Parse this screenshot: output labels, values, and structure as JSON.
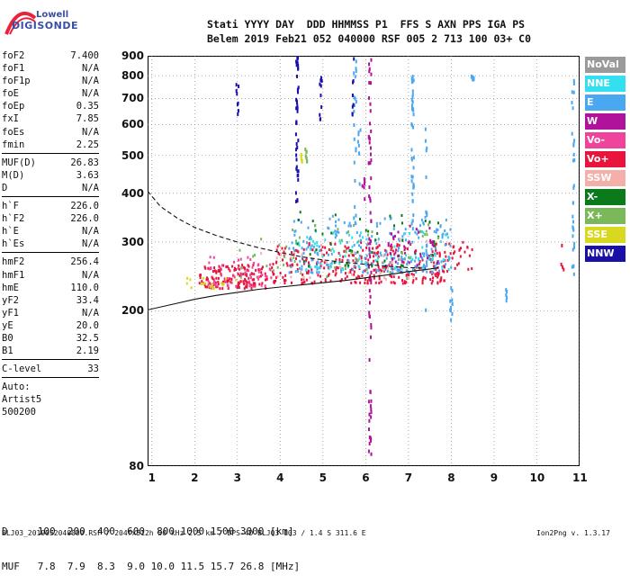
{
  "logo": {
    "brand": "Lowell",
    "product": "DIGISONDE"
  },
  "header": {
    "row1": "Stati YYYY DAY  DDD HHMMSS P1  FFS S AXN PPS IGA PS",
    "row2": "Belem 2019 Feb21 052 040000 RSF 005 2 713 100 03+ C0"
  },
  "params": [
    {
      "group": [
        {
          "k": "foF2",
          "v": "7.400"
        },
        {
          "k": "foF1",
          "v": "N/A"
        },
        {
          "k": "foF1p",
          "v": "N/A"
        },
        {
          "k": "foE",
          "v": "N/A"
        },
        {
          "k": "foEp",
          "v": "0.35"
        },
        {
          "k": "fxI",
          "v": "7.85"
        },
        {
          "k": "foEs",
          "v": "N/A"
        },
        {
          "k": "fmin",
          "v": "2.25"
        }
      ]
    },
    {
      "group": [
        {
          "k": "MUF(D)",
          "v": "26.83"
        },
        {
          "k": "M(D)",
          "v": "3.63"
        },
        {
          "k": "D",
          "v": "N/A"
        }
      ]
    },
    {
      "group": [
        {
          "k": "h`F",
          "v": "226.0"
        },
        {
          "k": "h`F2",
          "v": "226.0"
        },
        {
          "k": "h`E",
          "v": "N/A"
        },
        {
          "k": "h`Es",
          "v": "N/A"
        }
      ]
    },
    {
      "group": [
        {
          "k": "hmF2",
          "v": "256.4"
        },
        {
          "k": "hmF1",
          "v": "N/A"
        },
        {
          "k": "hmE",
          "v": "110.0"
        },
        {
          "k": "yF2",
          "v": "33.4"
        },
        {
          "k": "yF1",
          "v": "N/A"
        },
        {
          "k": "yE",
          "v": "20.0"
        },
        {
          "k": "B0",
          "v": "32.5"
        },
        {
          "k": "B1",
          "v": "2.19"
        }
      ]
    },
    {
      "group": [
        {
          "k": "C-level",
          "v": "33"
        }
      ]
    },
    {
      "group": [
        {
          "k": "Auto:",
          "v": ""
        },
        {
          "k": "Artist5",
          "v": ""
        },
        {
          "k": "500200",
          "v": ""
        }
      ]
    }
  ],
  "legend": [
    {
      "label": "NoVal",
      "color": "#9a9a9a"
    },
    {
      "label": "NNE",
      "color": "#33e0f0"
    },
    {
      "label": "E",
      "color": "#4aa8f0"
    },
    {
      "label": "W",
      "color": "#b0129c"
    },
    {
      "label": "Vo-",
      "color": "#f0449c"
    },
    {
      "label": "Vo+",
      "color": "#e8143c"
    },
    {
      "label": "SSW",
      "color": "#f4b0a8"
    },
    {
      "label": "X-",
      "color": "#0a7a1a"
    },
    {
      "label": "X+",
      "color": "#7ab85a"
    },
    {
      "label": "SSE",
      "color": "#d8d820"
    },
    {
      "label": "NNW",
      "color": "#1a10a8"
    }
  ],
  "chart_data": {
    "type": "scatter",
    "title": "",
    "xlabel": "",
    "ylabel": "",
    "xlim": [
      0.9,
      11.0
    ],
    "ylim": [
      80,
      900
    ],
    "yscale": "log",
    "x_ticks": [
      1,
      2,
      3,
      4,
      5,
      6,
      7,
      8,
      9,
      10,
      11
    ],
    "y_ticks": [
      80,
      200,
      300,
      400,
      500,
      600,
      700,
      800,
      900
    ],
    "grid": "dotted",
    "legend_position": "right",
    "curves": [
      {
        "style": "dashed",
        "points": [
          [
            0.9,
            405
          ],
          [
            1.2,
            370
          ],
          [
            1.6,
            345
          ],
          [
            2.0,
            327
          ],
          [
            2.5,
            312
          ],
          [
            3.0,
            300
          ],
          [
            3.5,
            290
          ],
          [
            4.0,
            282
          ],
          [
            4.5,
            275
          ],
          [
            5.0,
            270
          ],
          [
            5.5,
            266
          ],
          [
            6.0,
            263
          ],
          [
            6.5,
            260
          ],
          [
            7.0,
            258
          ],
          [
            7.4,
            257
          ]
        ]
      },
      {
        "style": "solid",
        "points": [
          [
            0.9,
            201
          ],
          [
            1.5,
            208
          ],
          [
            2.0,
            214
          ],
          [
            2.5,
            219
          ],
          [
            3.0,
            223
          ],
          [
            3.5,
            227
          ],
          [
            4.0,
            230
          ],
          [
            4.5,
            233
          ],
          [
            5.0,
            236
          ],
          [
            5.5,
            239
          ],
          [
            6.0,
            243
          ],
          [
            6.5,
            247
          ],
          [
            7.0,
            252
          ],
          [
            7.5,
            256
          ],
          [
            7.7,
            258
          ]
        ]
      }
    ],
    "clusters": [
      {
        "color": "#e8143c",
        "xr": [
          2.1,
          3.7
        ],
        "yr": [
          228,
          262
        ],
        "n": 140
      },
      {
        "color": "#f0449c",
        "xr": [
          2.3,
          3.8
        ],
        "yr": [
          230,
          275
        ],
        "n": 60
      },
      {
        "color": "#e8143c",
        "xr": [
          3.8,
          8.0
        ],
        "yr": [
          235,
          300
        ],
        "n": 320
      },
      {
        "color": "#4aa8f0",
        "xr": [
          4.2,
          8.0
        ],
        "yr": [
          250,
          350
        ],
        "n": 220
      },
      {
        "color": "#33e0f0",
        "xr": [
          4.2,
          8.0
        ],
        "yr": [
          255,
          320
        ],
        "n": 90
      },
      {
        "color": "#0a7a1a",
        "xr": [
          4.3,
          7.8
        ],
        "yr": [
          260,
          360
        ],
        "n": 50
      },
      {
        "color": "#7ab85a",
        "xr": [
          3.0,
          7.8
        ],
        "yr": [
          240,
          340
        ],
        "n": 50
      },
      {
        "color": "#d8d820",
        "xr": [
          1.8,
          3.0
        ],
        "yr": [
          228,
          245
        ],
        "n": 18
      },
      {
        "color": "#b0129c",
        "xr": [
          6.5,
          7.7
        ],
        "yr": [
          255,
          330
        ],
        "n": 40
      },
      {
        "color": "#f4b0a8",
        "xr": [
          3.5,
          7.5
        ],
        "yr": [
          240,
          320
        ],
        "n": 30
      },
      {
        "color": "#e8143c",
        "xr": [
          8.0,
          8.5
        ],
        "yr": [
          255,
          300
        ],
        "n": 20
      }
    ],
    "columns": [
      {
        "color": "#1a10a8",
        "x": 4.4,
        "yr": [
          380,
          900
        ],
        "n": 45
      },
      {
        "color": "#1a10a8",
        "x": 4.95,
        "yr": [
          600,
          790
        ],
        "n": 10
      },
      {
        "color": "#1a10a8",
        "x": 3.0,
        "yr": [
          630,
          780
        ],
        "n": 8
      },
      {
        "color": "#b0129c",
        "x": 6.1,
        "yr": [
          85,
          900
        ],
        "n": 70
      },
      {
        "color": "#4aa8f0",
        "x": 7.1,
        "yr": [
          300,
          800
        ],
        "n": 40
      },
      {
        "color": "#4aa8f0",
        "x": 7.4,
        "yr": [
          200,
          620
        ],
        "n": 16
      },
      {
        "color": "#4aa8f0",
        "x": 8.5,
        "yr": [
          780,
          800
        ],
        "n": 12
      },
      {
        "color": "#4aa8f0",
        "x": 10.85,
        "yr": [
          230,
          880
        ],
        "n": 30
      },
      {
        "color": "#4aa8f0",
        "x": 8.0,
        "yr": [
          185,
          230
        ],
        "n": 10
      },
      {
        "color": "#4aa8f0",
        "x": 5.75,
        "yr": [
          300,
          900
        ],
        "n": 20
      },
      {
        "color": "#1a10a8",
        "x": 5.7,
        "yr": [
          560,
          900
        ],
        "n": 8
      },
      {
        "color": "#4aa8f0",
        "x": 5.85,
        "yr": [
          420,
          600
        ],
        "n": 8
      },
      {
        "color": "#b0129c",
        "x": 5.95,
        "yr": [
          380,
          460
        ],
        "n": 6
      },
      {
        "color": "#7ab85a",
        "x": 4.6,
        "yr": [
          480,
          520
        ],
        "n": 8
      },
      {
        "color": "#d8d820",
        "x": 4.5,
        "yr": [
          480,
          510
        ],
        "n": 6
      },
      {
        "color": "#4aa8f0",
        "x": 9.3,
        "yr": [
          200,
          235
        ],
        "n": 5
      },
      {
        "color": "#e8143c",
        "x": 10.6,
        "yr": [
          250,
          300
        ],
        "n": 4
      }
    ]
  },
  "footer": {
    "d_row": "D     100  200  400  600  800 1000 1500 3000 [km]",
    "muf_row": "MUF   7.8  7.9  8.3  9.0 10.0 11.5 15.7 26.8 [MHz]",
    "file": "BLJ03_2019052040000.RSF / 204fx512h 50 kHz 2.5 km / DPS-4D BLJ03 103 / 1.4 S 311.6 E",
    "version": "Ion2Png v. 1.3.17"
  }
}
